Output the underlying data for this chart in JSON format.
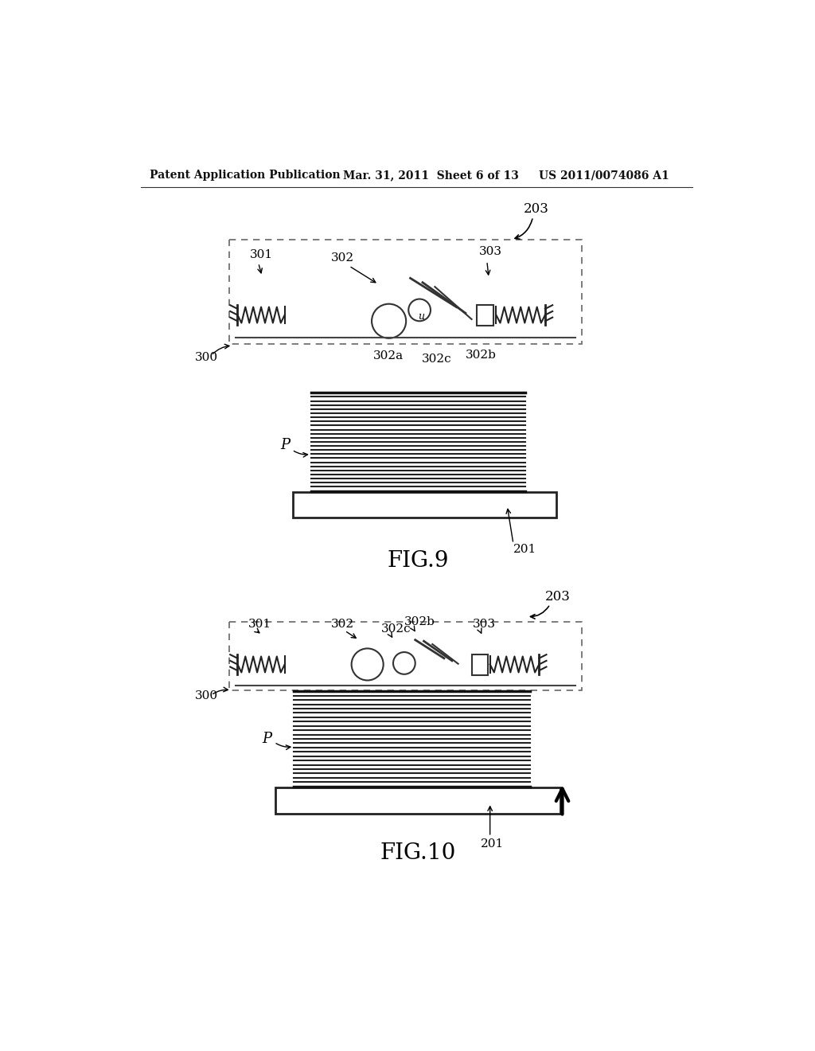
{
  "bg_color": "#ffffff",
  "header_left": "Patent Application Publication",
  "header_mid": "Mar. 31, 2011  Sheet 6 of 13",
  "header_right": "US 2011/0074086 A1",
  "fig9_label": "FIG.9",
  "fig10_label": "FIG.10"
}
